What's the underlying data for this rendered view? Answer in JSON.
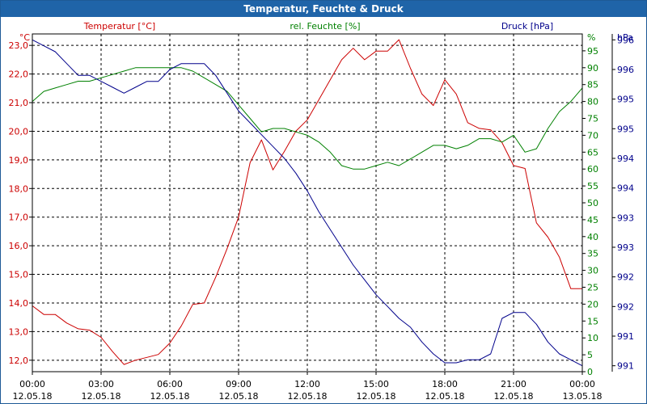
{
  "window": {
    "title": "Temperatur, Feuchte & Druck"
  },
  "colors": {
    "temperature": "#cc0000",
    "humidity": "#008000",
    "pressure": "#00008b",
    "title_bg": "#1f64a8"
  },
  "chart_data": {
    "type": "line",
    "title": "Temperatur, Feuchte & Druck",
    "xlabel": "",
    "x_ticks": [
      {
        "time": "00:00",
        "date": "12.05.18"
      },
      {
        "time": "03:00",
        "date": "12.05.18"
      },
      {
        "time": "06:00",
        "date": "12.05.18"
      },
      {
        "time": "09:00",
        "date": "12.05.18"
      },
      {
        "time": "12:00",
        "date": "12.05.18"
      },
      {
        "time": "15:00",
        "date": "12.05.18"
      },
      {
        "time": "18:00",
        "date": "12.05.18"
      },
      {
        "time": "21:00",
        "date": "12.05.18"
      },
      {
        "time": "00:00",
        "date": "13.05.18"
      }
    ],
    "xlim_hours": [
      0,
      24
    ],
    "axes": {
      "temperature": {
        "label": "Temperatur [°C]",
        "unit": "°C",
        "ylim": [
          11.6,
          23.4
        ],
        "ticks": [
          "12,0",
          "13,0",
          "14,0",
          "15,0",
          "16,0",
          "17,0",
          "18,0",
          "19,0",
          "20,0",
          "21,0",
          "22,0",
          "23,0"
        ]
      },
      "humidity": {
        "label": "rel. Feuchte [%]",
        "unit": "%",
        "ylim": [
          0,
          100
        ],
        "ticks": [
          "0",
          "5",
          "10",
          "15",
          "20",
          "25",
          "30",
          "35",
          "40",
          "45",
          "50",
          "55",
          "60",
          "65",
          "70",
          "75",
          "80",
          "85",
          "90",
          "95"
        ]
      },
      "pressure": {
        "label": "Druck [hPa]",
        "unit": "hPa",
        "ylim": [
          990.9,
          996.6
        ],
        "ticks": [
          "991",
          "991",
          "992",
          "992",
          "993",
          "993",
          "994",
          "994",
          "995",
          "995",
          "996",
          "996"
        ]
      }
    },
    "series": [
      {
        "name": "Temperatur [°C]",
        "axis": "temperature",
        "x": [
          0,
          0.5,
          1,
          1.5,
          2,
          2.5,
          3,
          3.5,
          4,
          4.5,
          5,
          5.5,
          6,
          6.5,
          7,
          7.5,
          8,
          8.5,
          9,
          9.5,
          10,
          10.5,
          11,
          11.5,
          12,
          12.5,
          13,
          13.5,
          14,
          14.5,
          15,
          15.5,
          16,
          16.5,
          17,
          17.5,
          18,
          18.5,
          19,
          19.5,
          20,
          20.5,
          21,
          21.5,
          22,
          22.5,
          23,
          23.5,
          24
        ],
        "values": [
          13.9,
          13.6,
          13.6,
          13.3,
          13.1,
          13.05,
          12.8,
          12.3,
          11.85,
          12.0,
          12.1,
          12.2,
          12.6,
          13.2,
          13.95,
          14.0,
          14.9,
          15.9,
          17.0,
          18.9,
          19.7,
          18.65,
          19.3,
          20.0,
          20.4,
          21.1,
          21.8,
          22.5,
          22.9,
          22.5,
          22.8,
          22.8,
          23.2,
          22.2,
          21.3,
          20.9,
          21.8,
          21.3,
          20.3,
          20.1,
          20.05,
          19.6,
          18.8,
          18.7,
          16.8,
          16.3,
          15.6,
          14.5,
          14.5
        ]
      },
      {
        "name": "rel. Feuchte [%]",
        "axis": "humidity",
        "x": [
          0,
          0.5,
          1,
          1.5,
          2,
          2.5,
          3,
          3.5,
          4,
          4.5,
          5,
          5.5,
          6,
          6.5,
          7,
          7.5,
          8,
          8.5,
          9,
          9.5,
          10,
          10.5,
          11,
          11.5,
          12,
          12.5,
          13,
          13.5,
          14,
          14.5,
          15,
          15.5,
          16,
          16.5,
          17,
          17.5,
          18,
          18.5,
          19,
          19.5,
          20,
          20.5,
          21,
          21.5,
          22,
          22.5,
          23,
          23.5,
          24
        ],
        "values": [
          80,
          83,
          84,
          85,
          86,
          86,
          87,
          88,
          89,
          90,
          90,
          90,
          90,
          90,
          89,
          87,
          85,
          83,
          79,
          75,
          71,
          72,
          72,
          71,
          70,
          68,
          65,
          61,
          60,
          60,
          61,
          62,
          61,
          63,
          65,
          67,
          67,
          66,
          67,
          69,
          69,
          68,
          70,
          65,
          66,
          72,
          77,
          80,
          84
        ]
      },
      {
        "name": "Druck [hPa]",
        "axis": "pressure",
        "x": [
          0,
          0.5,
          1,
          1.5,
          2,
          2.5,
          3,
          3.5,
          4,
          4.5,
          5,
          5.5,
          6,
          6.5,
          7,
          7.5,
          8,
          8.5,
          9,
          9.5,
          10,
          10.5,
          11,
          11.5,
          12,
          12.5,
          13,
          13.5,
          14,
          14.5,
          15,
          15.5,
          16,
          16.5,
          17,
          17.5,
          18,
          18.5,
          19,
          19.5,
          20,
          20.5,
          21,
          21.5,
          22,
          22.5,
          23,
          23.5,
          24
        ],
        "values": [
          996.5,
          996.4,
          996.3,
          996.1,
          995.9,
          995.9,
          995.8,
          995.7,
          995.6,
          995.7,
          995.8,
          995.8,
          996.0,
          996.1,
          996.1,
          996.1,
          995.9,
          995.6,
          995.3,
          995.1,
          994.9,
          994.7,
          994.5,
          994.25,
          993.95,
          993.6,
          993.3,
          993.0,
          992.7,
          992.45,
          992.2,
          992.0,
          991.8,
          991.65,
          991.4,
          991.2,
          991.05,
          991.05,
          991.1,
          991.1,
          991.2,
          991.8,
          991.9,
          991.9,
          991.7,
          991.4,
          991.2,
          991.1,
          991.0
        ]
      }
    ]
  }
}
